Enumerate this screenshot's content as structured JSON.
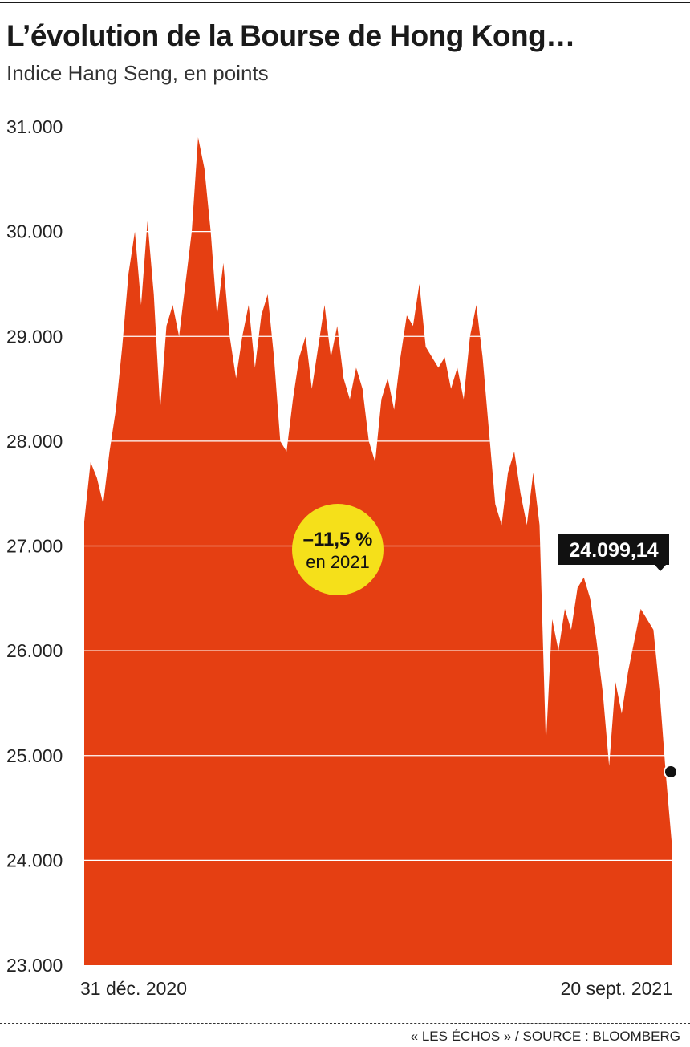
{
  "header": {
    "title": "L’évolution de la Bourse de Hong Kong…",
    "subtitle": "Indice Hang Seng, en points"
  },
  "footer": {
    "source": "« LES ÉCHOS » / SOURCE : BLOOMBERG"
  },
  "colors": {
    "area": "#e53f12",
    "grid": "#ffffff",
    "badge": "#f5e01a",
    "label_bg": "#111111",
    "point": "#111111"
  },
  "annotations": {
    "change_pct": "–11,5 %",
    "change_period": "en 2021",
    "last_value_label": "24.099,14"
  },
  "chart_data": {
    "type": "area",
    "title": "L’évolution de la Bourse de Hong Kong…",
    "subtitle": "Indice Hang Seng, en points",
    "xlabel": "",
    "ylabel": "",
    "ylim": [
      23000,
      31000
    ],
    "yticks": [
      23000,
      24000,
      25000,
      26000,
      27000,
      28000,
      29000,
      30000,
      31000
    ],
    "ytick_labels": [
      "23.000",
      "24.000",
      "25.000",
      "26.000",
      "27.000",
      "28.000",
      "29.000",
      "30.000",
      "31.000"
    ],
    "x_labels": [
      "31 déc. 2020",
      "20 sept. 2021"
    ],
    "grid": true,
    "values": [
      27230,
      27800,
      27650,
      27400,
      27900,
      28300,
      28900,
      29600,
      30000,
      29300,
      30100,
      29400,
      28300,
      29100,
      29300,
      29000,
      29500,
      30000,
      30900,
      30600,
      30000,
      29200,
      29700,
      29000,
      28600,
      29000,
      29300,
      28700,
      29200,
      29400,
      28800,
      28000,
      27900,
      28400,
      28800,
      29000,
      28500,
      28900,
      29300,
      28800,
      29100,
      28600,
      28400,
      28700,
      28500,
      28000,
      27800,
      28400,
      28600,
      28300,
      28800,
      29200,
      29100,
      29500,
      28900,
      28800,
      28700,
      28800,
      28500,
      28700,
      28400,
      29000,
      29300,
      28800,
      28100,
      27400,
      27200,
      27700,
      27900,
      27500,
      27200,
      27700,
      27200,
      25100,
      26300,
      26000,
      26400,
      26200,
      26600,
      26700,
      26500,
      26100,
      25600,
      24900,
      25700,
      25400,
      25800,
      26100,
      26400,
      26300,
      26200,
      25600,
      24800,
      24099.14
    ]
  }
}
